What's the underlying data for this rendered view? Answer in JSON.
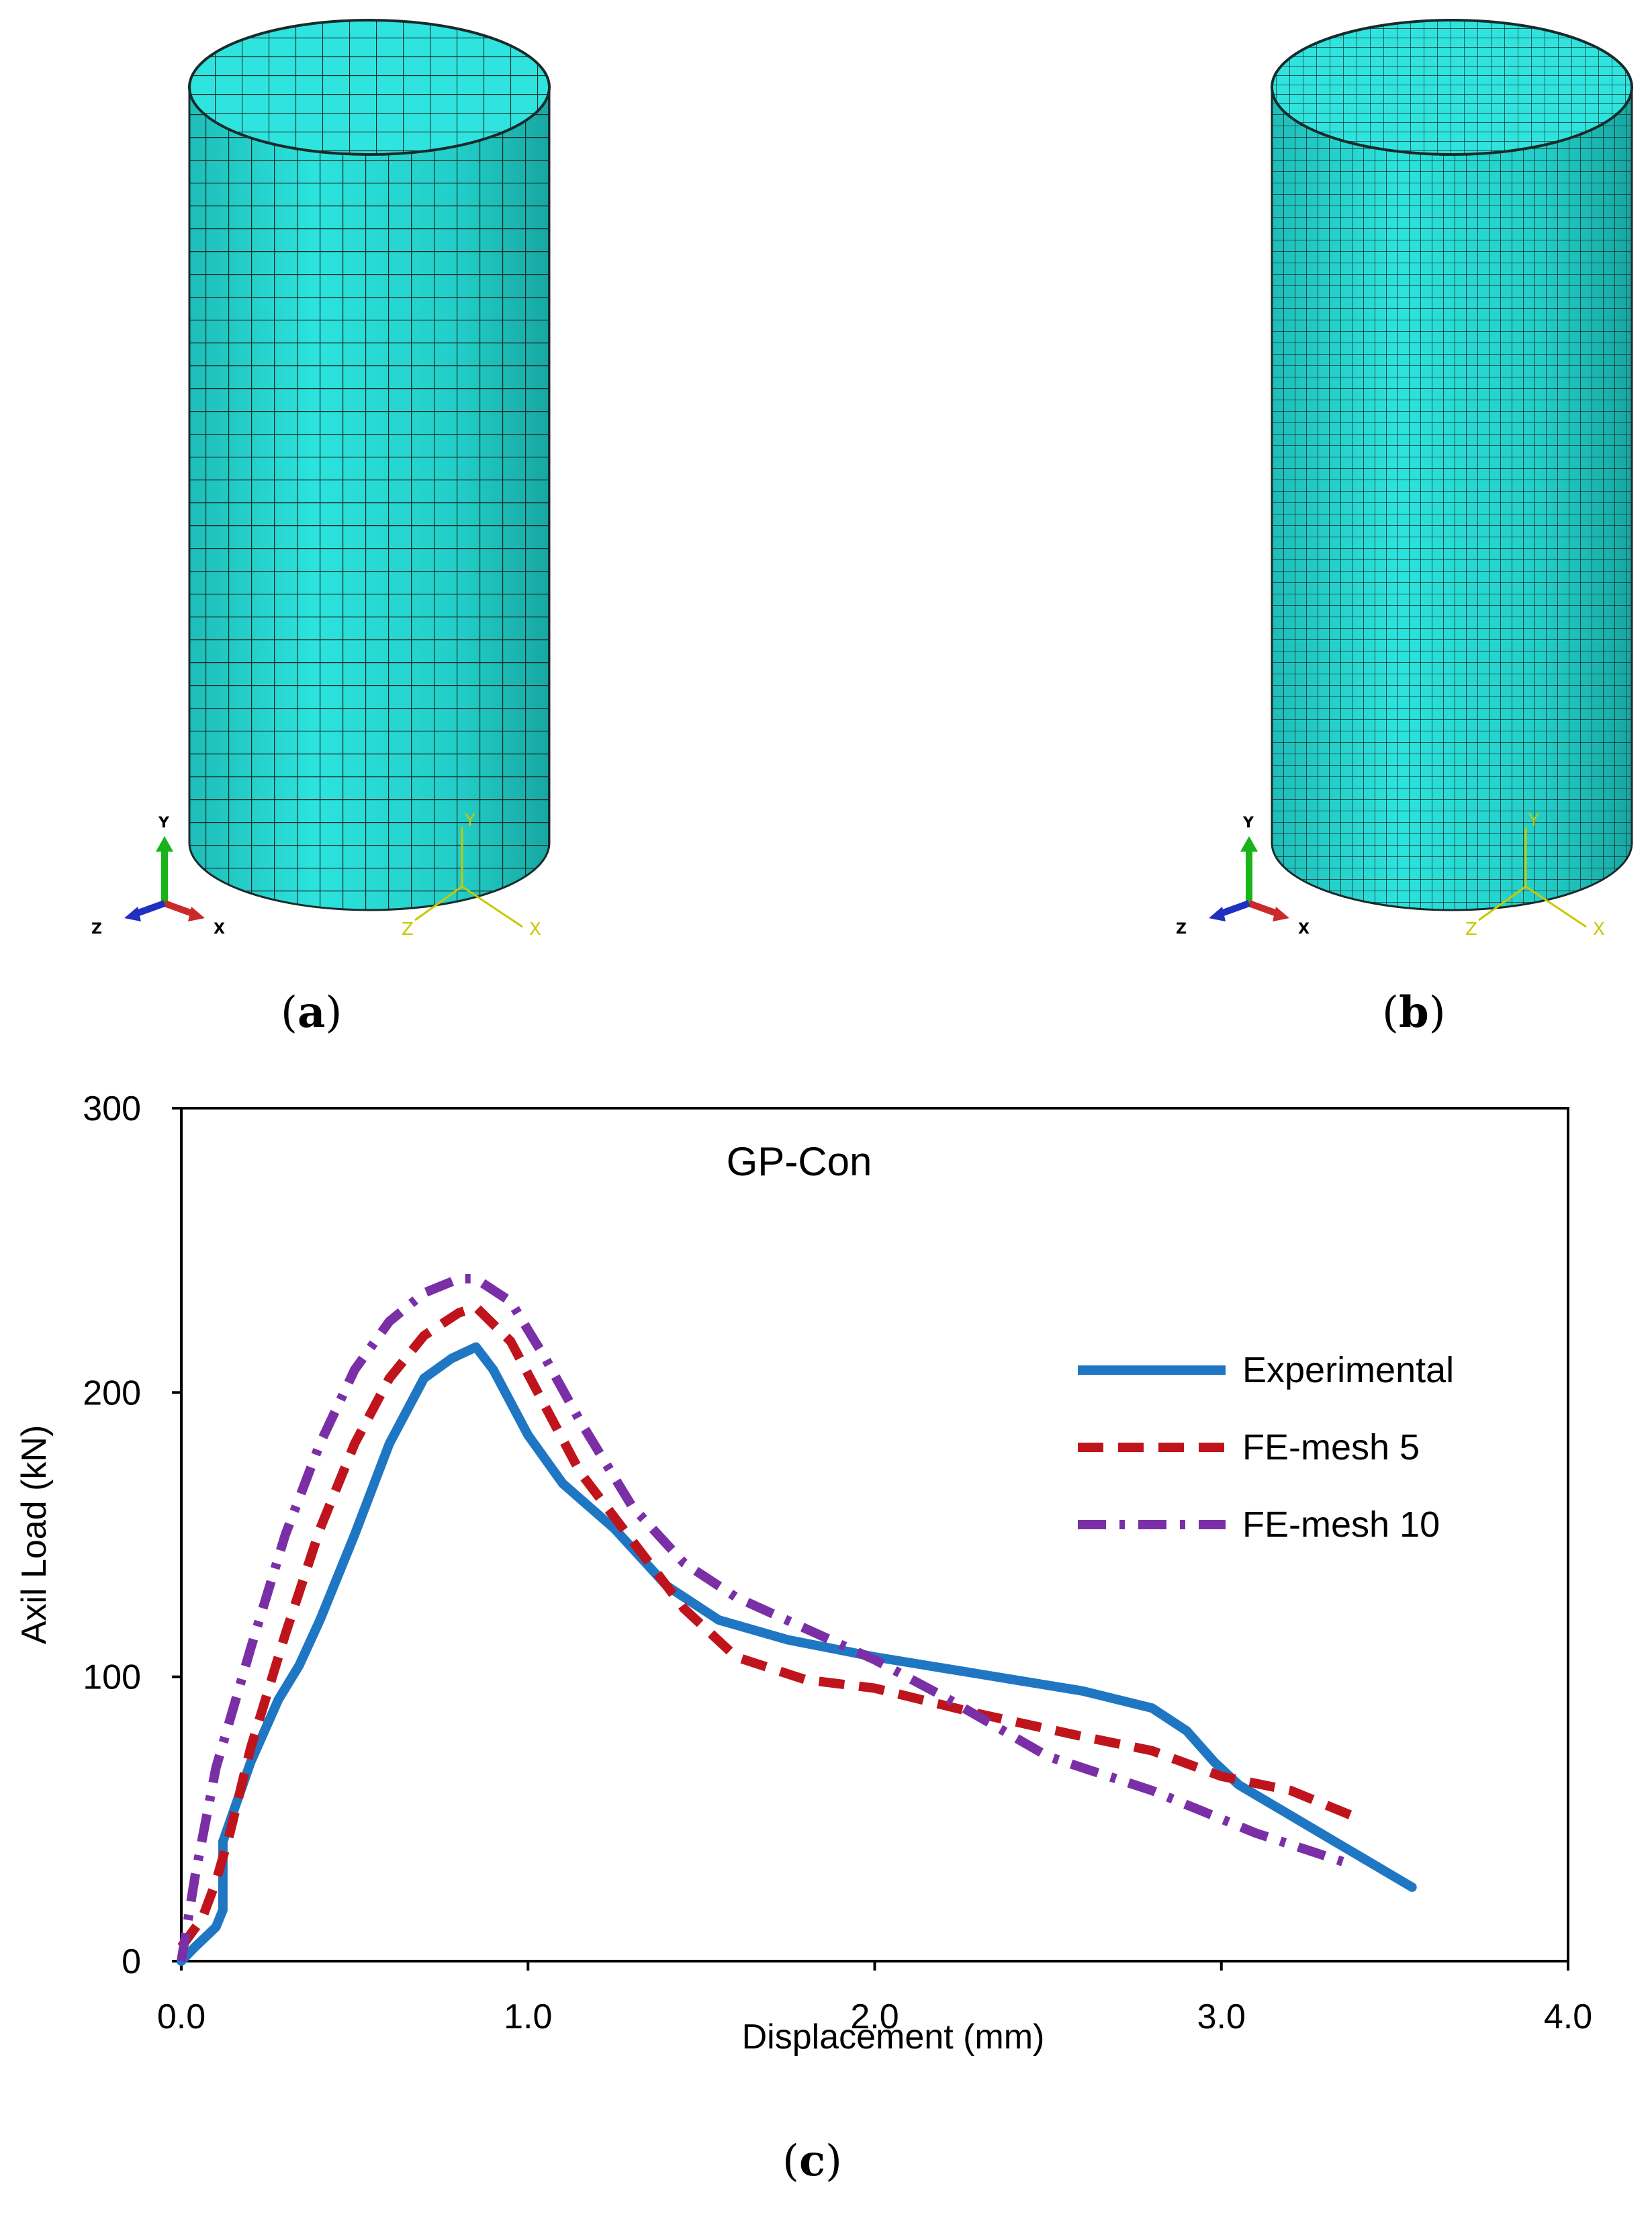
{
  "figure": {
    "panel_a_label": "a",
    "panel_b_label": "b",
    "panel_c_label": "c",
    "mesh_color": "#2adcd6",
    "mesh_line_color": "#1a2a2a",
    "triad_labels": {
      "x": "X",
      "y": "Y",
      "z": "Z"
    }
  },
  "chart_data": {
    "type": "line",
    "title": "GP-Con",
    "xlabel": "Displacement  (mm)",
    "ylabel": "Axil Load (kN)",
    "xlim": [
      0,
      4.0
    ],
    "ylim": [
      0,
      300
    ],
    "xticks": [
      0,
      1,
      2,
      3,
      4
    ],
    "xtick_labels": [
      "0.0",
      "1.0",
      "2.0",
      "3.0",
      "4.0"
    ],
    "yticks": [
      0,
      100,
      200,
      300
    ],
    "ytick_labels": [
      "0",
      "100",
      "200",
      "300"
    ],
    "legend_position": "right",
    "series": [
      {
        "name": "Experimental",
        "color": "#1f77c4",
        "style": "solid",
        "points": [
          [
            0.0,
            0
          ],
          [
            0.04,
            5
          ],
          [
            0.1,
            12
          ],
          [
            0.12,
            18
          ],
          [
            0.12,
            42
          ],
          [
            0.2,
            70
          ],
          [
            0.28,
            92
          ],
          [
            0.34,
            104
          ],
          [
            0.4,
            120
          ],
          [
            0.5,
            150
          ],
          [
            0.6,
            182
          ],
          [
            0.7,
            205
          ],
          [
            0.78,
            212
          ],
          [
            0.85,
            216
          ],
          [
            0.9,
            208
          ],
          [
            1.0,
            185
          ],
          [
            1.1,
            168
          ],
          [
            1.25,
            152
          ],
          [
            1.4,
            132
          ],
          [
            1.55,
            120
          ],
          [
            1.75,
            113
          ],
          [
            2.0,
            107
          ],
          [
            2.3,
            101
          ],
          [
            2.6,
            95
          ],
          [
            2.8,
            89
          ],
          [
            2.9,
            81
          ],
          [
            2.98,
            70
          ],
          [
            3.05,
            62
          ],
          [
            3.3,
            44
          ],
          [
            3.55,
            26
          ]
        ]
      },
      {
        "name": "FE-mesh 5",
        "color": "#c0141c",
        "style": "dashed",
        "points": [
          [
            0.0,
            5
          ],
          [
            0.06,
            15
          ],
          [
            0.1,
            28
          ],
          [
            0.14,
            45
          ],
          [
            0.2,
            75
          ],
          [
            0.3,
            115
          ],
          [
            0.4,
            152
          ],
          [
            0.5,
            182
          ],
          [
            0.6,
            205
          ],
          [
            0.7,
            220
          ],
          [
            0.8,
            228
          ],
          [
            0.85,
            230
          ],
          [
            0.95,
            218
          ],
          [
            1.05,
            195
          ],
          [
            1.15,
            172
          ],
          [
            1.3,
            148
          ],
          [
            1.45,
            124
          ],
          [
            1.6,
            107
          ],
          [
            1.8,
            99
          ],
          [
            2.0,
            96
          ],
          [
            2.3,
            87
          ],
          [
            2.6,
            79
          ],
          [
            2.8,
            74
          ],
          [
            3.0,
            65
          ],
          [
            3.2,
            60
          ],
          [
            3.4,
            50
          ]
        ]
      },
      {
        "name": "FE-mesh 10",
        "color": "#7b2fa6",
        "style": "dashdot",
        "points": [
          [
            0.0,
            0
          ],
          [
            0.04,
            30
          ],
          [
            0.1,
            68
          ],
          [
            0.2,
            110
          ],
          [
            0.3,
            150
          ],
          [
            0.4,
            182
          ],
          [
            0.5,
            208
          ],
          [
            0.6,
            225
          ],
          [
            0.7,
            235
          ],
          [
            0.8,
            240
          ],
          [
            0.85,
            240
          ],
          [
            0.95,
            232
          ],
          [
            1.05,
            212
          ],
          [
            1.15,
            190
          ],
          [
            1.3,
            160
          ],
          [
            1.45,
            140
          ],
          [
            1.6,
            128
          ],
          [
            1.8,
            117
          ],
          [
            2.0,
            106
          ],
          [
            2.2,
            93
          ],
          [
            2.5,
            72
          ],
          [
            2.8,
            60
          ],
          [
            3.1,
            45
          ],
          [
            3.35,
            35
          ]
        ]
      }
    ]
  }
}
